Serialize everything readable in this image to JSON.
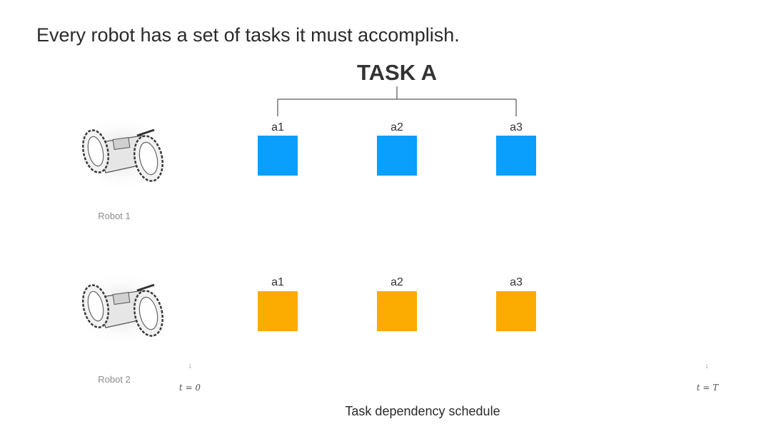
{
  "headline": "Every robot has a set of tasks it must accomplish.",
  "task_title": "TASK A",
  "colors": {
    "robot1_tasks": "#0a9ffc",
    "robot2_tasks": "#fcab00",
    "connector": "#333333"
  },
  "robots": [
    {
      "label": "Robot 1",
      "icon": "robot-rover-icon",
      "subtasks": [
        "a1",
        "a2",
        "a3"
      ]
    },
    {
      "label": "Robot 2",
      "icon": "robot-rover-icon",
      "subtasks": [
        "a1",
        "a2",
        "a3"
      ]
    }
  ],
  "timeline": {
    "start_label": "t = 0",
    "end_label": "t = T",
    "tick_mark": "⁏"
  },
  "caption": "Task dependency schedule"
}
